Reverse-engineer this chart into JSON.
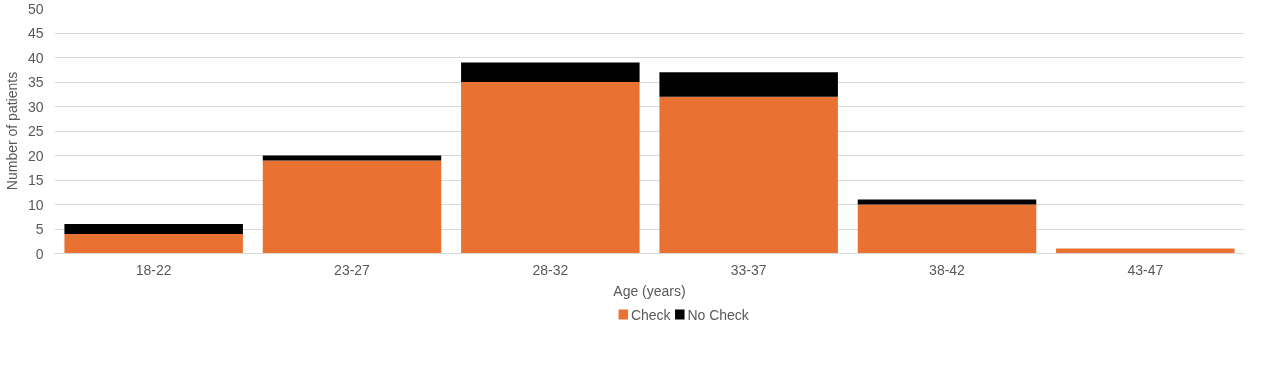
{
  "chart_data": {
    "type": "bar",
    "stacked": true,
    "xlabel": "Age (years)",
    "ylabel": "Number of patients",
    "categories": [
      "18-22",
      "23-27",
      "28-32",
      "33-37",
      "38-42",
      "43-47"
    ],
    "series": [
      {
        "name": "Check",
        "color": "#e97132",
        "values": [
          4,
          19,
          35,
          32,
          10,
          1
        ]
      },
      {
        "name": "No Check",
        "color": "#000000",
        "values": [
          2,
          1,
          4,
          5,
          1,
          0
        ]
      }
    ],
    "ylim": [
      0,
      50
    ],
    "yticks": [
      0,
      5,
      10,
      15,
      20,
      25,
      30,
      35,
      40,
      45,
      50
    ],
    "grid": "y",
    "legend": "bottom"
  }
}
